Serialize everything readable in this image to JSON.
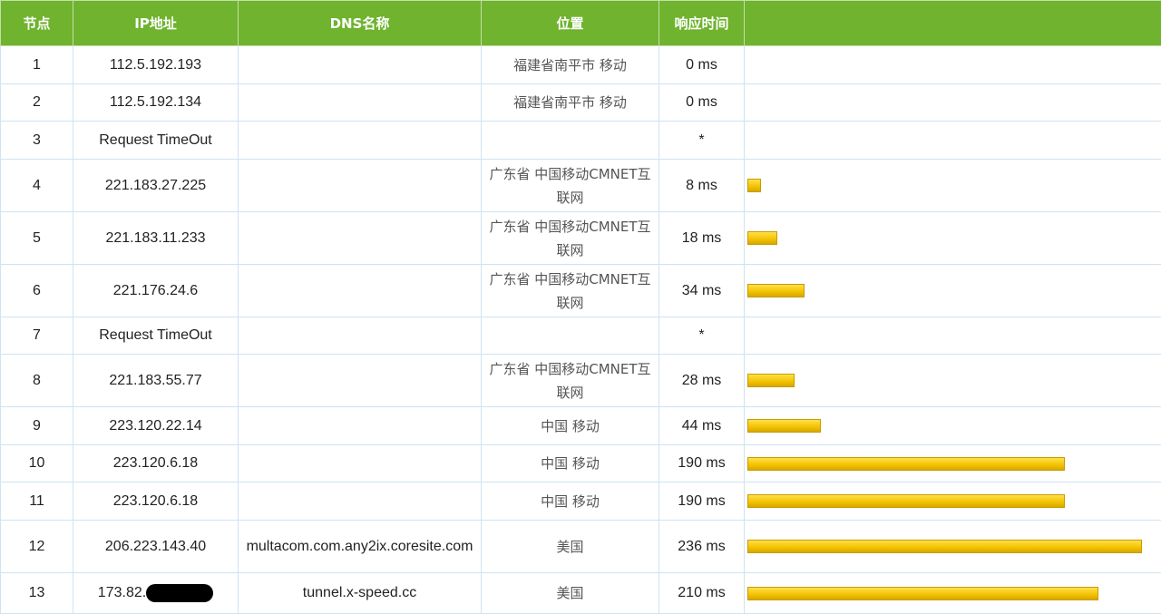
{
  "headers": {
    "node": "节点",
    "ip": "IP地址",
    "dns": "DNS名称",
    "location": "位置",
    "time": "响应时间",
    "bar": ""
  },
  "max_ms": 236,
  "rows": [
    {
      "node": "1",
      "ip": "112.5.192.193",
      "dns": "",
      "location": "福建省南平市 移动",
      "time": "0 ms",
      "ms": 0
    },
    {
      "node": "2",
      "ip": "112.5.192.134",
      "dns": "",
      "location": "福建省南平市 移动",
      "time": "0 ms",
      "ms": 0
    },
    {
      "node": "3",
      "ip": "Request TimeOut",
      "dns": "",
      "location": "",
      "time": "*",
      "ms": 0
    },
    {
      "node": "4",
      "ip": "221.183.27.225",
      "dns": "",
      "location": "广东省 中国移动CMNET互联网",
      "time": "8 ms",
      "ms": 8
    },
    {
      "node": "5",
      "ip": "221.183.11.233",
      "dns": "",
      "location": "广东省 中国移动CMNET互联网",
      "time": "18 ms",
      "ms": 18
    },
    {
      "node": "6",
      "ip": "221.176.24.6",
      "dns": "",
      "location": "广东省 中国移动CMNET互联网",
      "time": "34 ms",
      "ms": 34
    },
    {
      "node": "7",
      "ip": "Request TimeOut",
      "dns": "",
      "location": "",
      "time": "*",
      "ms": 0
    },
    {
      "node": "8",
      "ip": "221.183.55.77",
      "dns": "",
      "location": "广东省 中国移动CMNET互联网",
      "time": "28 ms",
      "ms": 28
    },
    {
      "node": "9",
      "ip": "223.120.22.14",
      "dns": "",
      "location": "中国 移动",
      "time": "44 ms",
      "ms": 44
    },
    {
      "node": "10",
      "ip": "223.120.6.18",
      "dns": "",
      "location": "中国 移动",
      "time": "190 ms",
      "ms": 190
    },
    {
      "node": "11",
      "ip": "223.120.6.18",
      "dns": "",
      "location": "中国 移动",
      "time": "190 ms",
      "ms": 190
    },
    {
      "node": "12",
      "ip": "206.223.143.40",
      "dns": "multacom.com.any2ix.coresite.com",
      "location": "美国",
      "time": "236 ms",
      "ms": 236
    },
    {
      "node": "13",
      "ip": "173.82.",
      "dns": "tunnel.x-speed.cc",
      "location": "美国",
      "time": "210 ms",
      "ms": 210,
      "redacted": true
    }
  ]
}
